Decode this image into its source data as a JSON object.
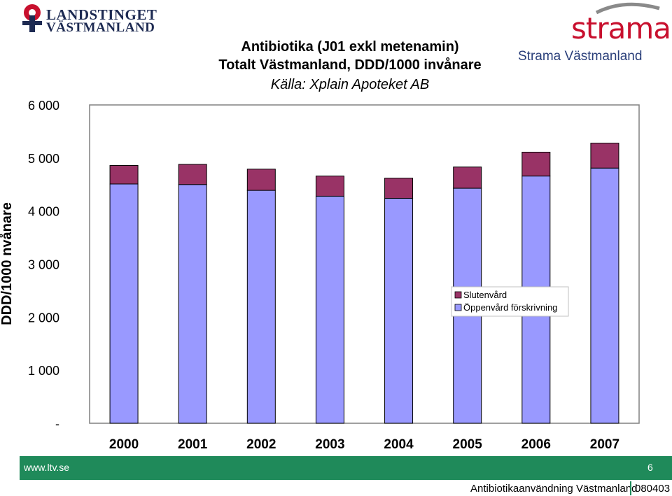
{
  "header": {
    "logo_line1": "LANDSTINGET",
    "logo_line2": "VÄSTMANLAND",
    "strama_logo": "strama",
    "strama_subtitle": "Strama Västmanland"
  },
  "footer": {
    "url": "www.ltv.se",
    "page": "6",
    "title": "Antibiotikaanvändning Västmanland",
    "date": "080403"
  },
  "colors": {
    "slutenvard": "#993366",
    "oppenvard": "#9999ff",
    "footer_green": "#1f8a5a",
    "brand_red": "#c8102e"
  },
  "chart_data": {
    "type": "bar",
    "stacked": true,
    "title": [
      "Antibiotika (J01 exkl metenamin)",
      "Totalt Västmanland, DDD/1000 invånare"
    ],
    "subtitle": "Källa: Xplain Apoteket AB",
    "ylabel": "DDD/1000 nvånare",
    "xlabel": "",
    "ylim": [
      0,
      6000
    ],
    "yticks": [
      0,
      1000,
      2000,
      3000,
      4000,
      5000,
      6000
    ],
    "ytick_labels": [
      "-",
      "1 000",
      "2 000",
      "3 000",
      "4 000",
      "5 000",
      "6 000"
    ],
    "categories": [
      "2000",
      "2001",
      "2002",
      "2003",
      "2004",
      "2005",
      "2006",
      "2007"
    ],
    "series": [
      {
        "name": "Öppenvård förskrivning",
        "values": [
          4510,
          4500,
          4390,
          4280,
          4240,
          4430,
          4660,
          4810
        ]
      },
      {
        "name": "Slutenvård",
        "values": [
          350,
          380,
          400,
          380,
          380,
          400,
          450,
          470
        ]
      }
    ],
    "legend": [
      "Slutenvård",
      "Öppenvård förskrivning"
    ],
    "legend_position": "center-right",
    "grid": false
  }
}
